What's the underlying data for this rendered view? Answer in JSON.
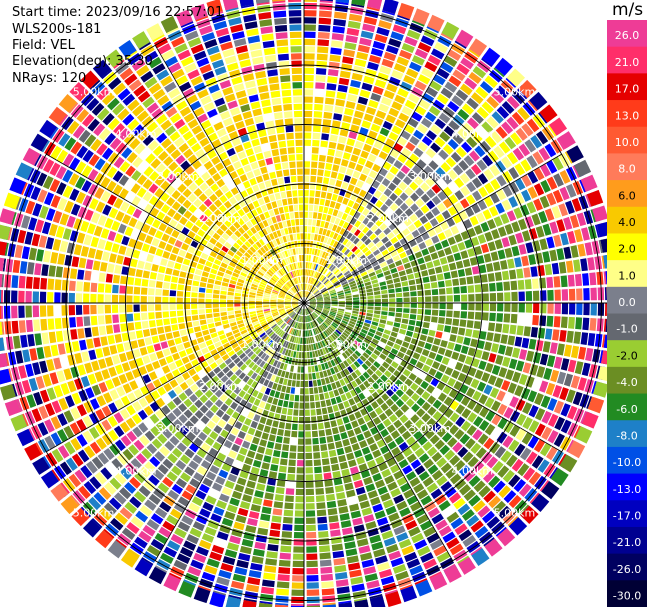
{
  "header": {
    "start_time": "Start time: 2023/09/16 22:57:01",
    "instrument": "WLS200s-181",
    "field": "Field: VEL",
    "elevation": "Elevation(deg): 35.30",
    "nrays": "NRays: 120"
  },
  "colorbar": {
    "unit": "m/s",
    "bins": [
      {
        "label": "26.0",
        "color": "#ee3c96"
      },
      {
        "label": "21.0",
        "color": "#ff2e6a"
      },
      {
        "label": "17.0",
        "color": "#e50000"
      },
      {
        "label": "13.0",
        "color": "#ff3b1a"
      },
      {
        "label": "10.0",
        "color": "#ff5a32"
      },
      {
        "label": "8.0",
        "color": "#ff7b5a"
      },
      {
        "label": "6.0",
        "color": "#ff9c1c"
      },
      {
        "label": "4.0",
        "color": "#f9c900"
      },
      {
        "label": "2.0",
        "color": "#ffff00"
      },
      {
        "label": "1.0",
        "color": "#ffff88"
      },
      {
        "label": "0.0",
        "color": "#7b7f8c"
      },
      {
        "label": "-1.0",
        "color": "#646870"
      },
      {
        "label": "-2.0",
        "color": "#9acd32"
      },
      {
        "label": "-4.0",
        "color": "#6b8e23"
      },
      {
        "label": "-6.0",
        "color": "#228b22"
      },
      {
        "label": "-8.0",
        "color": "#1e80c8"
      },
      {
        "label": "-10.0",
        "color": "#0050e6"
      },
      {
        "label": "-13.0",
        "color": "#0000ff"
      },
      {
        "label": "-17.0",
        "color": "#0000c0"
      },
      {
        "label": "-21.0",
        "color": "#000090"
      },
      {
        "label": "-26.0",
        "color": "#000060"
      },
      {
        "label": "-30.0",
        "color": "#000035"
      }
    ]
  },
  "chart_data": {
    "type": "ppi",
    "field": "VEL",
    "units": "m/s",
    "vmin": -30.0,
    "vmax": 30.0,
    "nrays": 120,
    "elevation_deg": 35.3,
    "range_rings_km": [
      1.0,
      2.0,
      3.0,
      4.0,
      5.0
    ],
    "range_ring_labels": [
      "1.00km",
      "2.00km",
      "3.00km",
      "4.00km",
      "5.00km"
    ],
    "max_range_km": 5.4,
    "regions": [
      {
        "azimuth_from_deg": 295,
        "azimuth_to_deg": 30,
        "dominant_velocity_ms": 2.0,
        "description": "yellow positive sector"
      },
      {
        "azimuth_from_deg": 30,
        "azimuth_to_deg": 65,
        "dominant_velocity_ms": 0.0,
        "description": "grey near-zero band"
      },
      {
        "azimuth_from_deg": 65,
        "azimuth_to_deg": 200,
        "dominant_velocity_ms": -5.0,
        "description": "green negative sector"
      },
      {
        "azimuth_from_deg": 200,
        "azimuth_to_deg": 235,
        "dominant_velocity_ms": -1.5,
        "description": "light green / grey band"
      },
      {
        "azimuth_from_deg": 235,
        "azimuth_to_deg": 295,
        "dominant_velocity_ms": 2.0,
        "description": "yellow positive sector"
      }
    ],
    "noise_begins_km": 4.4
  }
}
